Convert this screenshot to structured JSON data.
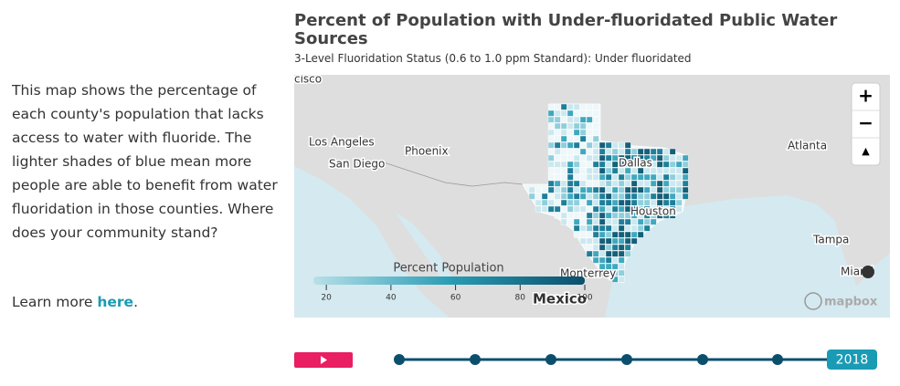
{
  "intro": {
    "description": "This map shows the percentage of each county's population that lacks access to water with fluoride. The lighter shades of blue mean more people are able to benefit from water fluoridation in those counties. Where does your community stand?",
    "learn_more": "Learn more",
    "link": "here",
    "end": "."
  },
  "map": {
    "title": "Percent of Population with Under-fluoridated Public Water Sources",
    "subtitle": "3-Level Fluoridation Status (0.6 to 1.0 ppm Standard): Under fluoridated",
    "places": [
      "cisco",
      "Los Angeles",
      "San Diego",
      "Phoenix",
      "Dallas",
      "Houston",
      "Atlanta",
      "Tampa",
      "Monterrey",
      "Mexico",
      "Miami"
    ],
    "controls": [
      "+",
      "−",
      "▲"
    ],
    "attribution": "mapbox",
    "legend": {
      "title": "Percent Population",
      "lim": [
        16,
        100
      ],
      "ticks": [
        20,
        40,
        60,
        80,
        100
      ]
    }
  },
  "timeline": {
    "current": "2018"
  }
}
